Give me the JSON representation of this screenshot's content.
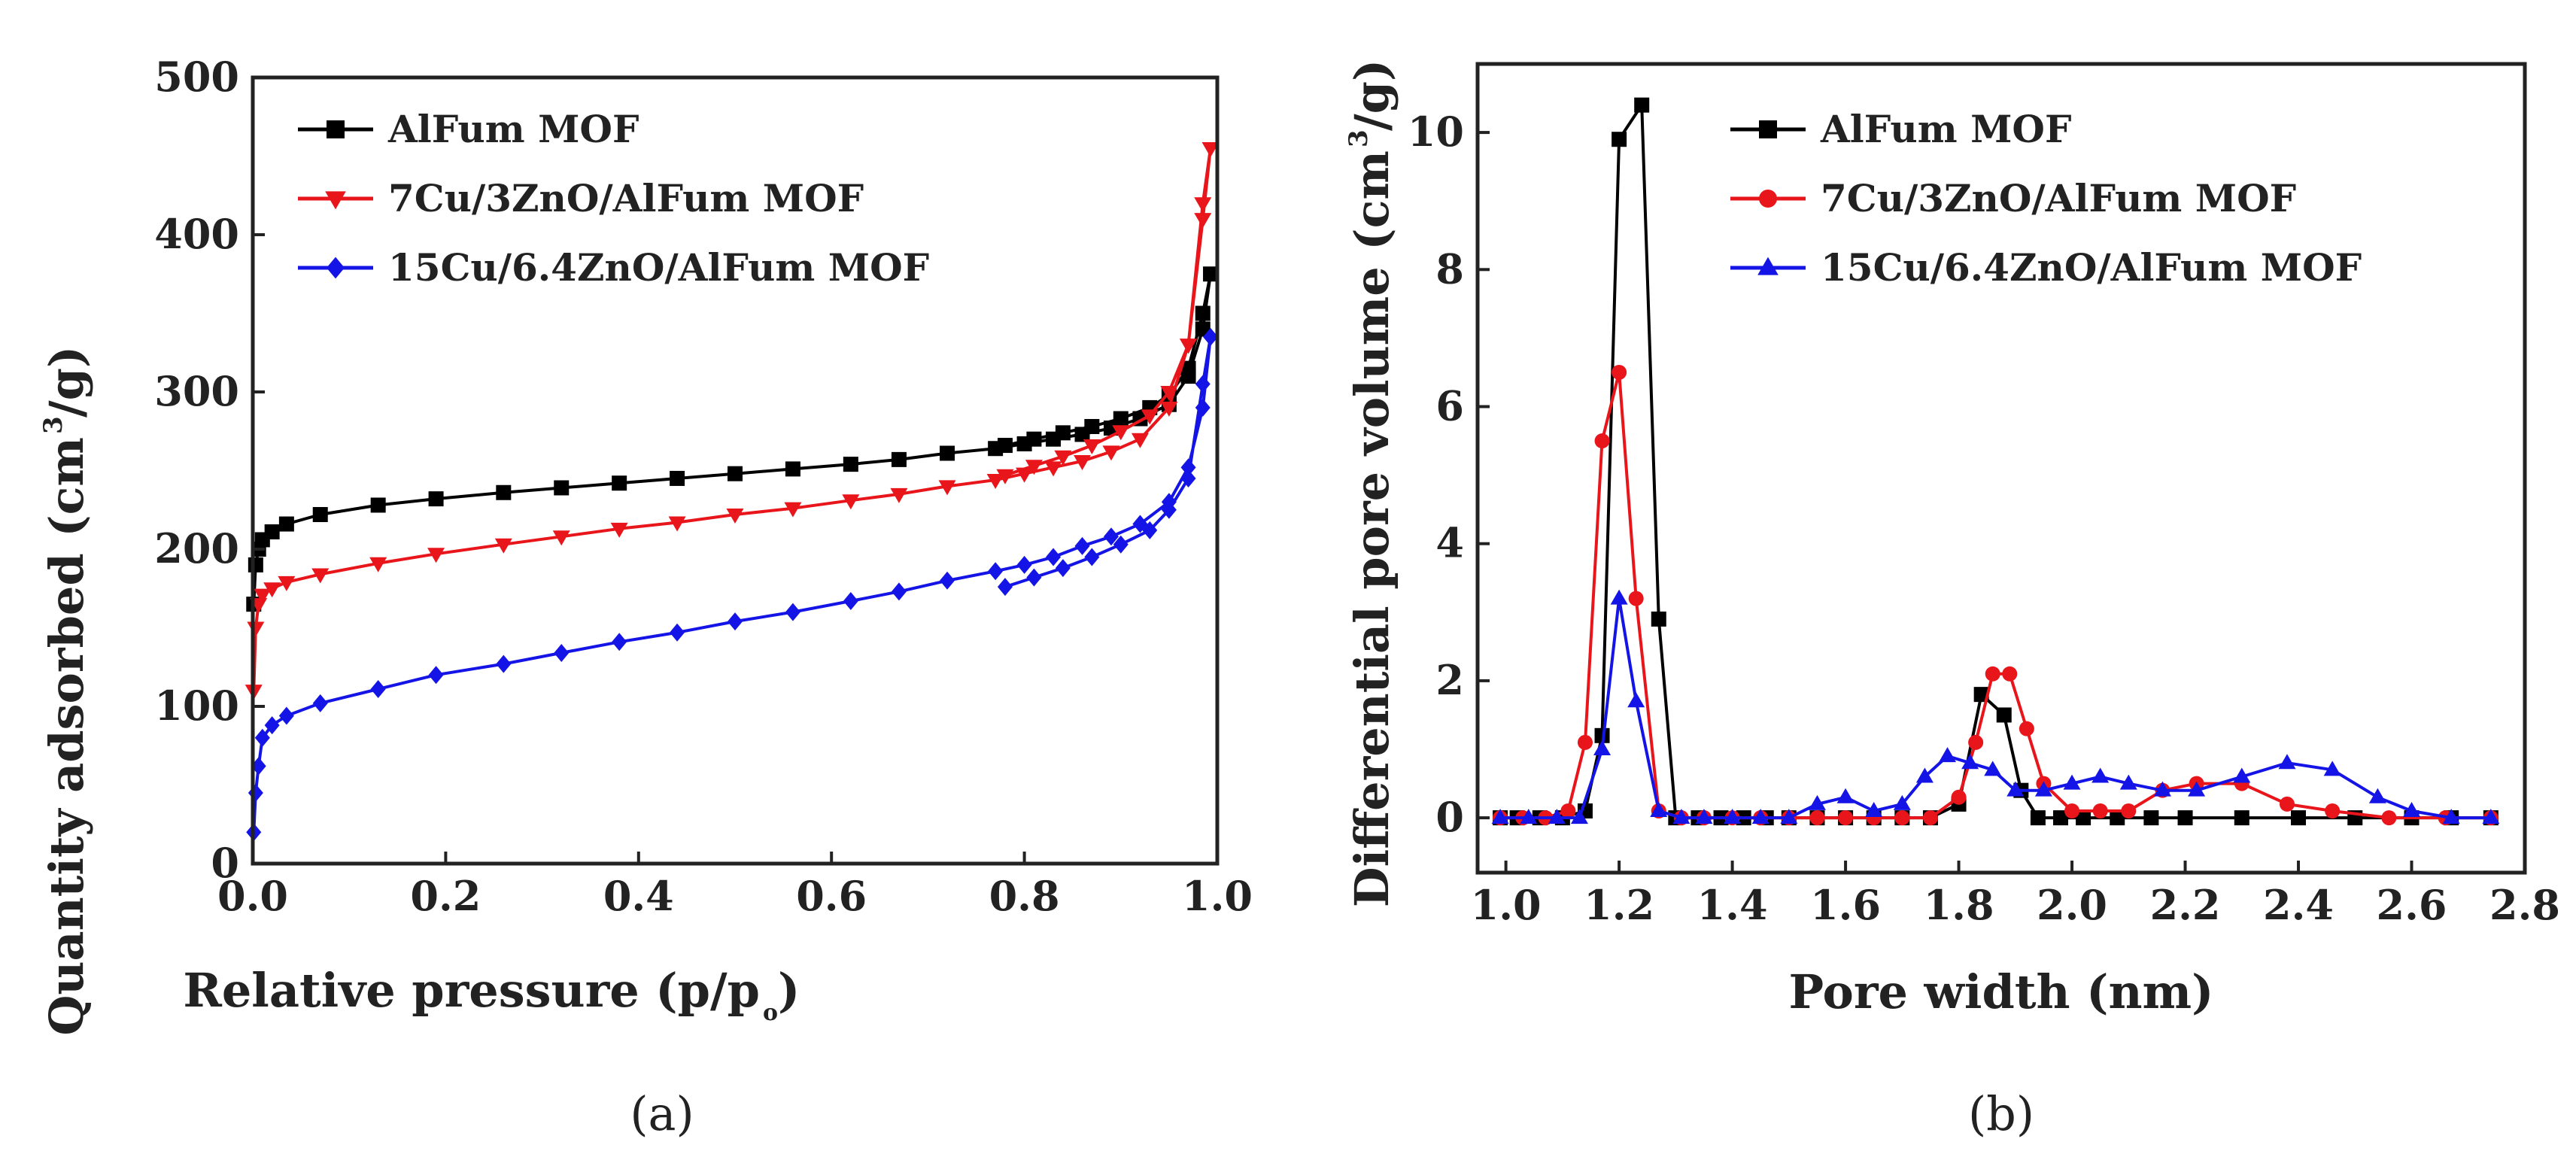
{
  "panels": [
    {
      "label": "(a)"
    },
    {
      "label": "(b)"
    }
  ],
  "chart_data": [
    {
      "type": "line",
      "panel": "(a)",
      "title": "",
      "xlabel": "Relative pressure (p/p",
      "xlabel_sub": "o",
      "xlabel_close": ")",
      "ylabel": "Quantity adsorbed (cm",
      "ylabel_sup": "3",
      "ylabel_close": "/g)",
      "xlim": [
        0,
        1.0
      ],
      "ylim": [
        0,
        500
      ],
      "xticks": [
        "0.0",
        "0.2",
        "0.4",
        "0.6",
        "0.8",
        "1.0"
      ],
      "yticks": [
        "0",
        "100",
        "200",
        "300",
        "400",
        "500"
      ],
      "legend_position": "top-left",
      "series": [
        {
          "name": "AlFum MOF",
          "color": "#000000",
          "marker": "square",
          "x": [
            0.001,
            0.003,
            0.006,
            0.01,
            0.02,
            0.035,
            0.07,
            0.13,
            0.19,
            0.26,
            0.32,
            0.38,
            0.44,
            0.5,
            0.56,
            0.62,
            0.67,
            0.72,
            0.77,
            0.8,
            0.83,
            0.86,
            0.89,
            0.92,
            0.95,
            0.97,
            0.985,
            0.993,
            0.985,
            0.97,
            0.95,
            0.93,
            0.9,
            0.87,
            0.84,
            0.81,
            0.78
          ],
          "y": [
            165,
            190,
            200,
            206,
            211,
            216,
            222,
            228,
            232,
            236,
            239,
            242,
            245,
            248,
            251,
            254,
            257,
            261,
            264,
            267,
            270,
            273,
            277,
            283,
            292,
            310,
            340,
            375,
            350,
            315,
            298,
            290,
            283,
            278,
            274,
            270,
            266
          ]
        },
        {
          "name": "7Cu/3ZnO/AlFum MOF",
          "color": "#e8151b",
          "marker": "triangle-down",
          "x": [
            0.001,
            0.003,
            0.006,
            0.01,
            0.02,
            0.035,
            0.07,
            0.13,
            0.19,
            0.26,
            0.32,
            0.38,
            0.44,
            0.5,
            0.56,
            0.62,
            0.67,
            0.72,
            0.77,
            0.8,
            0.83,
            0.86,
            0.89,
            0.92,
            0.95,
            0.97,
            0.985,
            0.993,
            0.985,
            0.97,
            0.95,
            0.93,
            0.9,
            0.87,
            0.84,
            0.81,
            0.78
          ],
          "y": [
            110,
            150,
            165,
            171,
            175,
            179,
            184,
            191,
            197,
            203,
            208,
            213,
            217,
            222,
            226,
            231,
            235,
            240,
            244,
            248,
            252,
            256,
            262,
            270,
            290,
            330,
            410,
            455,
            420,
            330,
            300,
            285,
            275,
            266,
            259,
            253,
            247
          ]
        },
        {
          "name": "15Cu/6.4ZnO/AlFum MOF",
          "color": "#1414e6",
          "marker": "diamond",
          "x": [
            0.001,
            0.003,
            0.006,
            0.01,
            0.02,
            0.035,
            0.07,
            0.13,
            0.19,
            0.26,
            0.32,
            0.38,
            0.44,
            0.5,
            0.56,
            0.62,
            0.67,
            0.72,
            0.77,
            0.8,
            0.83,
            0.86,
            0.89,
            0.92,
            0.95,
            0.97,
            0.985,
            0.993,
            0.985,
            0.97,
            0.95,
            0.93,
            0.9,
            0.87,
            0.84,
            0.81,
            0.78
          ],
          "y": [
            20,
            45,
            62,
            80,
            88,
            94,
            102,
            111,
            120,
            127,
            134,
            141,
            147,
            154,
            160,
            167,
            173,
            180,
            186,
            190,
            195,
            202,
            208,
            216,
            230,
            252,
            290,
            335,
            305,
            245,
            225,
            212,
            203,
            195,
            188,
            182,
            176
          ]
        }
      ]
    },
    {
      "type": "line",
      "panel": "(b)",
      "title": "",
      "xlabel": "Pore width (nm)",
      "ylabel": "Differential pore volume (cm",
      "ylabel_sup": "3",
      "ylabel_close": "/g)",
      "xlim": [
        0.95,
        2.8
      ],
      "ylim": [
        -0.8,
        11
      ],
      "xticks": [
        "1.0",
        "1.2",
        "1.4",
        "1.6",
        "1.8",
        "2.0",
        "2.2",
        "2.4",
        "2.6",
        "2.8"
      ],
      "yticks": [
        "0",
        "2",
        "4",
        "6",
        "8",
        "10"
      ],
      "legend_position": "top-right",
      "series": [
        {
          "name": "AlFum MOF",
          "color": "#000000",
          "marker": "square",
          "x": [
            0.99,
            1.02,
            1.06,
            1.1,
            1.14,
            1.17,
            1.2,
            1.24,
            1.27,
            1.3,
            1.34,
            1.38,
            1.42,
            1.46,
            1.5,
            1.55,
            1.6,
            1.65,
            1.7,
            1.75,
            1.8,
            1.84,
            1.88,
            1.91,
            1.94,
            1.98,
            2.02,
            2.08,
            2.14,
            2.2,
            2.3,
            2.4,
            2.5,
            2.6,
            2.67,
            2.74
          ],
          "y": [
            0,
            0,
            0,
            0,
            0.1,
            1.2,
            9.9,
            10.4,
            2.9,
            0,
            0,
            0,
            0,
            0,
            0,
            0,
            0,
            0,
            0,
            0,
            0.2,
            1.8,
            1.5,
            0.4,
            0,
            0,
            0,
            0,
            0,
            0,
            0,
            0,
            0,
            0,
            0,
            0
          ]
        },
        {
          "name": "7Cu/3ZnO/AlFum MOF",
          "color": "#e8151b",
          "marker": "circle",
          "x": [
            0.99,
            1.03,
            1.07,
            1.11,
            1.14,
            1.17,
            1.2,
            1.23,
            1.27,
            1.31,
            1.35,
            1.4,
            1.45,
            1.5,
            1.55,
            1.6,
            1.65,
            1.7,
            1.75,
            1.8,
            1.83,
            1.86,
            1.89,
            1.92,
            1.95,
            2.0,
            2.05,
            2.1,
            2.16,
            2.22,
            2.3,
            2.38,
            2.46,
            2.56,
            2.66,
            2.74
          ],
          "y": [
            0,
            0,
            0,
            0.1,
            1.1,
            5.5,
            6.5,
            3.2,
            0.1,
            0,
            0,
            0,
            0,
            0,
            0,
            0,
            0,
            0,
            0,
            0.3,
            1.1,
            2.1,
            2.1,
            1.3,
            0.5,
            0.1,
            0.1,
            0.1,
            0.4,
            0.5,
            0.5,
            0.2,
            0.1,
            0,
            0,
            0
          ]
        },
        {
          "name": "15Cu/6.4ZnO/AlFum MOF",
          "color": "#1414e6",
          "marker": "triangle-up",
          "x": [
            0.99,
            1.04,
            1.09,
            1.13,
            1.17,
            1.2,
            1.23,
            1.27,
            1.31,
            1.35,
            1.4,
            1.45,
            1.5,
            1.55,
            1.6,
            1.65,
            1.7,
            1.74,
            1.78,
            1.82,
            1.86,
            1.9,
            1.95,
            2.0,
            2.05,
            2.1,
            2.16,
            2.22,
            2.3,
            2.38,
            2.46,
            2.54,
            2.6,
            2.67,
            2.74
          ],
          "y": [
            0,
            0,
            0,
            0,
            1.0,
            3.2,
            1.7,
            0.1,
            0,
            0,
            0,
            0,
            0,
            0.2,
            0.3,
            0.1,
            0.2,
            0.6,
            0.9,
            0.8,
            0.7,
            0.4,
            0.4,
            0.5,
            0.6,
            0.5,
            0.4,
            0.4,
            0.6,
            0.8,
            0.7,
            0.3,
            0.1,
            0,
            0
          ]
        }
      ]
    }
  ]
}
